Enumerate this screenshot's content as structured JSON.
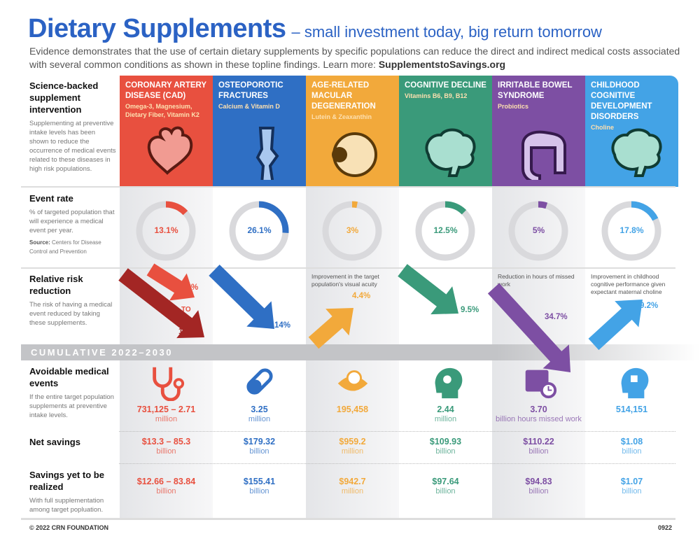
{
  "title": {
    "main": "Dietary Supplements",
    "tagline": "– small investment today, big return tomorrow"
  },
  "intro": {
    "text": "Evidence demonstrates that the use of certain dietary supplements by specific populations can reduce the direct and indirect medical costs associated with several common conditions as shown in these topline findings. Learn more: ",
    "link": "SupplementstoSavings.org"
  },
  "rows": {
    "intervention": {
      "title": "Science-backed supplement intervention",
      "desc": "Supplementing at preventive intake levels has been shown to reduce the occurrence of medical events related to these diseases in high risk populations."
    },
    "event_rate": {
      "title": "Event rate",
      "desc": "% of targeted population that will experience a medical event per year.",
      "source_label": "Source:",
      "source": "Centers for Disease Control and Prevention"
    },
    "rrr": {
      "title": "Relative risk reduction",
      "desc": "The risk of having a medical event reduced by taking these supplements."
    },
    "cumulative": "CUMULATIVE 2022–2030",
    "avoidable": {
      "title": "Avoidable medical events",
      "desc": "If the entire target population supplements at preventive intake levels."
    },
    "net": {
      "title": "Net savings"
    },
    "yet": {
      "title": "Savings yet to be realized",
      "desc": "With full supplementation among target popluation."
    }
  },
  "columns": [
    {
      "name": "CORONARY ARTERY DISEASE (CAD)",
      "supplements": "Omega-3, Magnesium, Dietary Fiber, Vitamin K2",
      "color": "#e8503f",
      "dark": "#a32624",
      "icon": "heart-icon",
      "event_rate": 13.1,
      "event_rate_label": "13.1%",
      "rrr_note": "",
      "rrr": [
        "4.2%",
        "TO",
        "15.7%"
      ],
      "rrr_direction": "down",
      "cum_icon": "stethoscope-icon",
      "avoidable": "731,125 – 2.71",
      "avoidable_unit": "million",
      "net": "$13.3 – 85.3",
      "net_unit": "billion",
      "yet": "$12.66 – 83.84",
      "yet_unit": "billion"
    },
    {
      "name": "OSTEOPOROTIC FRACTURES",
      "supplements": "Calcium & Vitamin D",
      "color": "#2f6fc4",
      "icon": "bone-joint-icon",
      "event_rate": 26.1,
      "event_rate_label": "26.1%",
      "rrr_note": "",
      "rrr": [
        "14%"
      ],
      "rrr_direction": "down",
      "cum_icon": "pill-icon",
      "avoidable": "3.25",
      "avoidable_unit": "million",
      "net": "$179.32",
      "net_unit": "billion",
      "yet": "$155.41",
      "yet_unit": "billion"
    },
    {
      "name": "AGE-RELATED MACULAR DEGENERATION",
      "supplements": "Lutein & Zeaxanthin",
      "color": "#f2a93b",
      "icon": "eye-icon",
      "event_rate": 3,
      "event_rate_label": "3%",
      "rrr_note": "Improvement in the target population's visual acuity",
      "rrr": [
        "4.4%"
      ],
      "rrr_direction": "up",
      "cum_icon": "eye-exam-icon",
      "avoidable": "195,458",
      "avoidable_unit": "",
      "net": "$959.2",
      "net_unit": "million",
      "yet": "$942.7",
      "yet_unit": "million"
    },
    {
      "name": "COGNITIVE DECLINE",
      "supplements": "Vitamins B6, B9, B12",
      "color": "#3a9a7a",
      "icon": "brain-icon",
      "event_rate": 12.5,
      "event_rate_label": "12.5%",
      "rrr_note": "",
      "rrr": [
        "9.5%"
      ],
      "rrr_direction": "down",
      "cum_icon": "head-gear-icon",
      "avoidable": "2.44",
      "avoidable_unit": "million",
      "net": "$109.93",
      "net_unit": "billion",
      "yet": "$97.64",
      "yet_unit": "billion"
    },
    {
      "name": "IRRITABLE BOWEL SYNDROME",
      "supplements": "Probiotics",
      "color": "#7d4fa3",
      "icon": "intestine-icon",
      "event_rate": 5,
      "event_rate_label": "5%",
      "rrr_note": "Reduction in hours of missed work",
      "rrr": [
        "34.7%"
      ],
      "rrr_direction": "down",
      "cum_icon": "calendar-clock-icon",
      "avoidable": "3.70",
      "avoidable_unit": "billion hours missed work",
      "net": "$110.22",
      "net_unit": "billion",
      "yet": "$94.83",
      "yet_unit": "billion"
    },
    {
      "name": "CHILDHOOD COGNITIVE DEVELOPMENT DISORDERS",
      "supplements": "Choline",
      "color": "#43a3e6",
      "icon": "brain-icon",
      "event_rate": 17.8,
      "event_rate_label": "17.8%",
      "rrr_note": "Improvement in childhood cognitive performance given expectant maternal choline",
      "rrr": [
        "9.2%"
      ],
      "rrr_direction": "up",
      "cum_icon": "head-puzzle-icon",
      "avoidable": "514,151",
      "avoidable_unit": "",
      "net": "$1.08",
      "net_unit": "billion",
      "yet": "$1.07",
      "yet_unit": "billion"
    }
  ],
  "footer": {
    "copyright": "© 2022 CRN FOUNDATION",
    "code": "0922"
  }
}
